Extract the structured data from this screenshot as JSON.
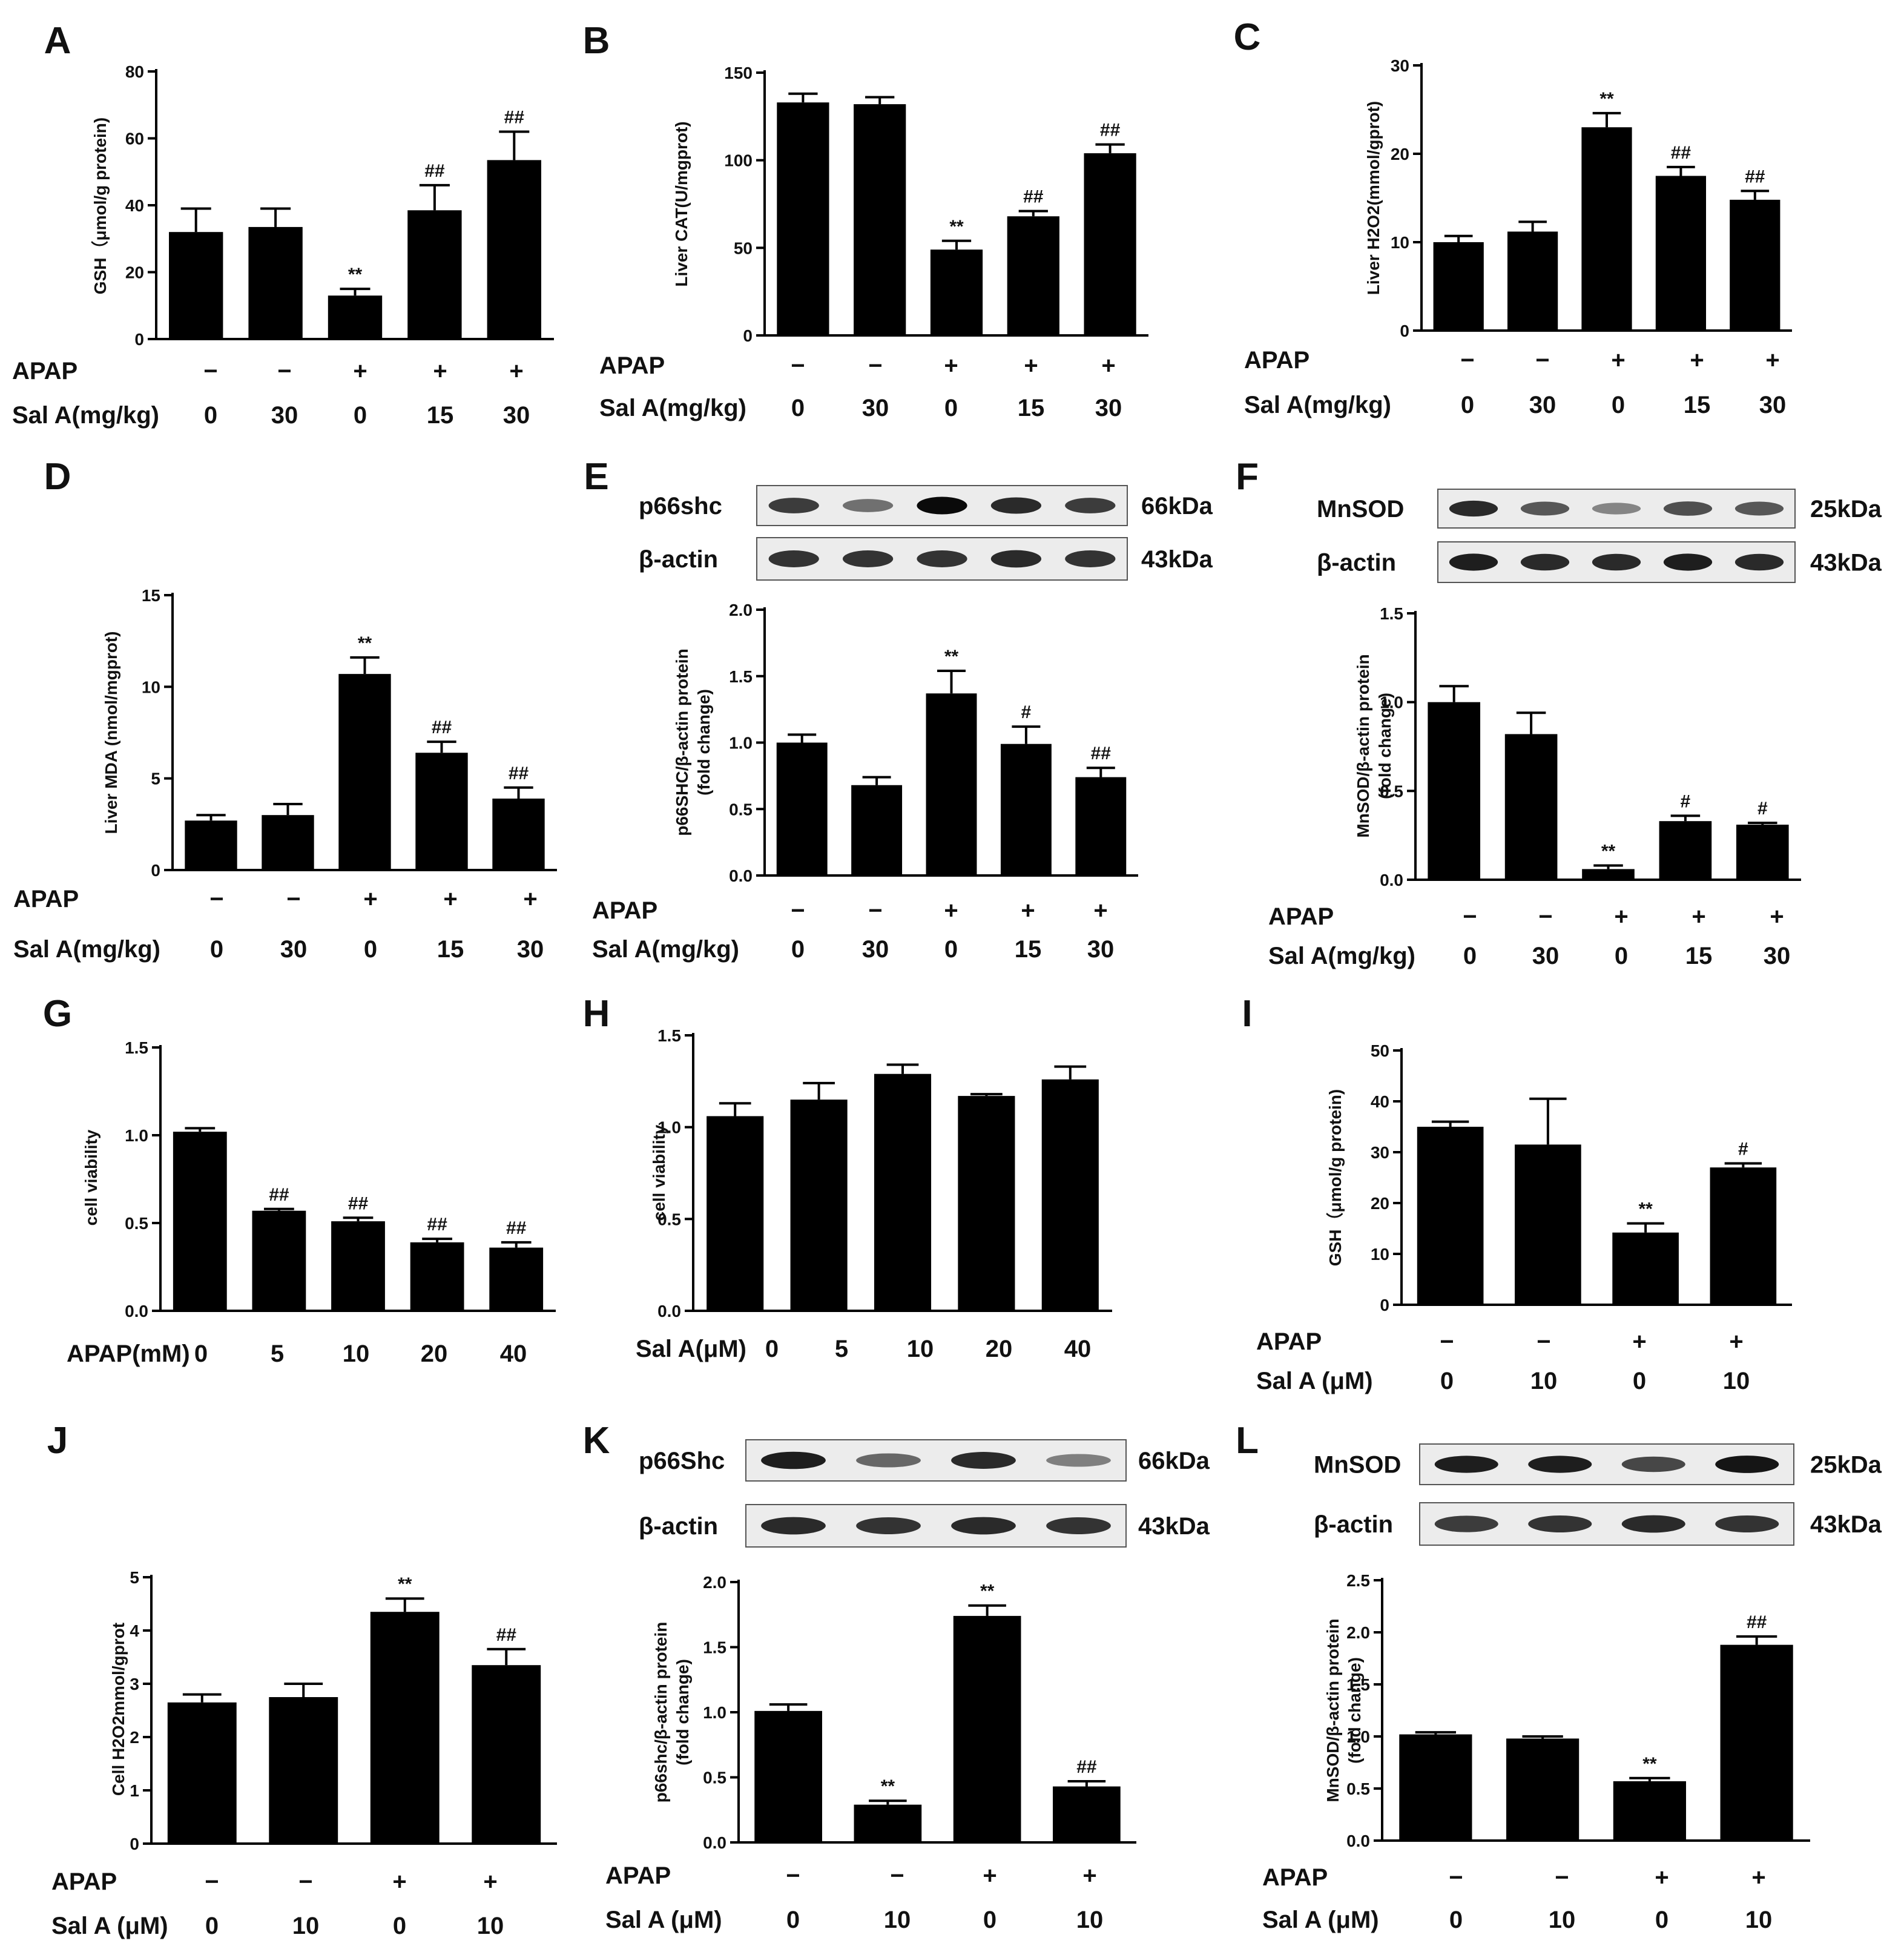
{
  "chart_data": [
    {
      "type": "bar",
      "panel": "A",
      "ylabel": "GSH（μmol/g protein)",
      "ylim": [
        0,
        80
      ],
      "yticks": [
        0,
        20,
        40,
        60,
        80
      ],
      "categories": [
        "1",
        "2",
        "3",
        "4",
        "5"
      ],
      "values": [
        32,
        33.5,
        13,
        38.5,
        53.5
      ],
      "errors": [
        7,
        5.5,
        2,
        7.5,
        8.5
      ],
      "annotations": [
        "",
        "",
        "**",
        "##",
        "##"
      ],
      "conditions": [
        {
          "label": "APAP",
          "values": [
            "−",
            "−",
            "+",
            "+",
            "+"
          ]
        },
        {
          "label": "Sal A(mg/kg)",
          "values": [
            "0",
            "30",
            "0",
            "15",
            "30"
          ]
        }
      ]
    },
    {
      "type": "bar",
      "panel": "B",
      "ylabel": "Liver CAT(U/mgprot)",
      "ylim": [
        0,
        150
      ],
      "yticks": [
        0,
        50,
        100,
        150
      ],
      "categories": [
        "1",
        "2",
        "3",
        "4",
        "5"
      ],
      "values": [
        133,
        132,
        49,
        68,
        104
      ],
      "errors": [
        5,
        4,
        5,
        3,
        5
      ],
      "annotations": [
        "",
        "",
        "**",
        "##",
        "##"
      ],
      "conditions": [
        {
          "label": "APAP",
          "values": [
            "−",
            "−",
            "+",
            "+",
            "+"
          ]
        },
        {
          "label": "Sal A(mg/kg)",
          "values": [
            "0",
            "30",
            "0",
            "15",
            "30"
          ]
        }
      ]
    },
    {
      "type": "bar",
      "panel": "C",
      "ylabel": "Liver H2O2(mmol/gprot)",
      "ylim": [
        0,
        30
      ],
      "yticks": [
        0,
        10,
        20,
        30
      ],
      "categories": [
        "1",
        "2",
        "3",
        "4",
        "5"
      ],
      "values": [
        10,
        11.2,
        23,
        17.5,
        14.8
      ],
      "errors": [
        0.7,
        1.1,
        1.6,
        1.0,
        1.0
      ],
      "annotations": [
        "",
        "",
        "**",
        "##",
        "##"
      ],
      "conditions": [
        {
          "label": "APAP",
          "values": [
            "−",
            "−",
            "+",
            "+",
            "+"
          ]
        },
        {
          "label": "Sal A(mg/kg)",
          "values": [
            "0",
            "30",
            "0",
            "15",
            "30"
          ]
        }
      ]
    },
    {
      "type": "bar",
      "panel": "D",
      "ylabel": "Liver MDA (nmol/mgprot)",
      "ylim": [
        0,
        15
      ],
      "yticks": [
        0,
        5,
        10,
        15
      ],
      "categories": [
        "1",
        "2",
        "3",
        "4",
        "5"
      ],
      "values": [
        2.7,
        3.0,
        10.7,
        6.4,
        3.9
      ],
      "errors": [
        0.3,
        0.6,
        0.9,
        0.6,
        0.6
      ],
      "annotations": [
        "",
        "",
        "**",
        "##",
        "##"
      ],
      "conditions": [
        {
          "label": "APAP",
          "values": [
            "−",
            "−",
            "+",
            "+",
            "+"
          ]
        },
        {
          "label": "Sal A(mg/kg)",
          "values": [
            "0",
            "30",
            "0",
            "15",
            "30"
          ]
        }
      ]
    },
    {
      "type": "bar",
      "panel": "E",
      "ylabel": "p66SHC/β-actin protein\n(fold change)",
      "ylim": [
        0,
        2.0
      ],
      "yticks": [
        0,
        0.5,
        1.0,
        1.5,
        2.0
      ],
      "categories": [
        "1",
        "2",
        "3",
        "4",
        "5"
      ],
      "values": [
        1.0,
        0.68,
        1.37,
        0.99,
        0.74
      ],
      "errors": [
        0.06,
        0.06,
        0.17,
        0.13,
        0.07
      ],
      "annotations": [
        "",
        "",
        "**",
        "#",
        "##"
      ],
      "conditions": [
        {
          "label": "APAP",
          "values": [
            "−",
            "−",
            "+",
            "+",
            "+"
          ]
        },
        {
          "label": "Sal A(mg/kg)",
          "values": [
            "0",
            "30",
            "0",
            "15",
            "30"
          ]
        }
      ],
      "blot": {
        "rows": [
          {
            "label": "p66shc",
            "kda": "66kDa",
            "intensity": [
              0.75,
              0.45,
              1.0,
              0.85,
              0.75
            ]
          },
          {
            "label": "β-actin",
            "kda": "43kDa",
            "intensity": [
              0.8,
              0.8,
              0.8,
              0.85,
              0.8
            ]
          }
        ]
      }
    },
    {
      "type": "bar",
      "panel": "F",
      "ylabel": "MnSOD/β-actin protein\n(fold change)",
      "ylim": [
        0,
        1.5
      ],
      "yticks": [
        0,
        0.5,
        1.0,
        1.5
      ],
      "categories": [
        "1",
        "2",
        "3",
        "4",
        "5"
      ],
      "values": [
        1.0,
        0.82,
        0.06,
        0.33,
        0.31
      ],
      "errors": [
        0.09,
        0.12,
        0.02,
        0.03,
        0.01
      ],
      "annotations": [
        "",
        "",
        "**",
        "#",
        "#"
      ],
      "conditions": [
        {
          "label": "APAP",
          "values": [
            "−",
            "−",
            "+",
            "+",
            "+"
          ]
        },
        {
          "label": "Sal A(mg/kg)",
          "values": [
            "0",
            "30",
            "0",
            "15",
            "30"
          ]
        }
      ],
      "blot": {
        "rows": [
          {
            "label": "MnSOD",
            "kda": "25kDa",
            "intensity": [
              0.85,
              0.6,
              0.3,
              0.65,
              0.6
            ]
          },
          {
            "label": "β-actin",
            "kda": "43kDa",
            "intensity": [
              0.9,
              0.85,
              0.85,
              0.9,
              0.85
            ]
          }
        ]
      }
    },
    {
      "type": "bar",
      "panel": "G",
      "ylabel": "cell viability",
      "ylim": [
        0,
        1.5
      ],
      "yticks": [
        0,
        0.5,
        1.0,
        1.5
      ],
      "categories": [
        "1",
        "2",
        "3",
        "4",
        "5"
      ],
      "values": [
        1.02,
        0.57,
        0.51,
        0.39,
        0.36
      ],
      "errors": [
        0.02,
        0.01,
        0.02,
        0.02,
        0.03
      ],
      "annotations": [
        "",
        "##",
        "##",
        "##",
        "##"
      ],
      "conditions": [
        {
          "label": "APAP(mM)",
          "values": [
            "0",
            "5",
            "10",
            "20",
            "40"
          ]
        }
      ]
    },
    {
      "type": "bar",
      "panel": "H",
      "ylabel": "cell viability",
      "ylim": [
        0,
        1.5
      ],
      "yticks": [
        0,
        0.5,
        1.0,
        1.5
      ],
      "categories": [
        "1",
        "2",
        "3",
        "4",
        "5"
      ],
      "values": [
        1.06,
        1.15,
        1.29,
        1.17,
        1.26
      ],
      "errors": [
        0.07,
        0.09,
        0.05,
        0.01,
        0.07
      ],
      "annotations": [
        "",
        "",
        "",
        "",
        ""
      ],
      "conditions": [
        {
          "label": "Sal A(μM)",
          "values": [
            "0",
            "5",
            "10",
            "20",
            "40"
          ]
        }
      ]
    },
    {
      "type": "bar",
      "panel": "I",
      "ylabel": "GSH（μmol/g protein)",
      "ylim": [
        0,
        50
      ],
      "yticks": [
        0,
        10,
        20,
        30,
        40,
        50
      ],
      "categories": [
        "1",
        "2",
        "3",
        "4"
      ],
      "values": [
        35,
        31.5,
        14.2,
        27
      ],
      "errors": [
        1,
        9,
        1.8,
        0.8
      ],
      "annotations": [
        "",
        "",
        "**",
        "#"
      ],
      "conditions": [
        {
          "label": "APAP",
          "values": [
            "−",
            "−",
            "+",
            "+"
          ]
        },
        {
          "label": "Sal A (μM)",
          "values": [
            "0",
            "10",
            "0",
            "10"
          ]
        }
      ]
    },
    {
      "type": "bar",
      "panel": "J",
      "ylabel": "Cell H2O2mmol/gprot",
      "ylim": [
        0,
        5
      ],
      "yticks": [
        0,
        1,
        2,
        3,
        4,
        5
      ],
      "categories": [
        "1",
        "2",
        "3",
        "4"
      ],
      "values": [
        2.65,
        2.75,
        4.35,
        3.35
      ],
      "errors": [
        0.15,
        0.25,
        0.25,
        0.3
      ],
      "annotations": [
        "",
        "",
        "**",
        "##"
      ],
      "conditions": [
        {
          "label": "APAP",
          "values": [
            "−",
            "−",
            "+",
            "+"
          ]
        },
        {
          "label": "Sal A (μM)",
          "values": [
            "0",
            "10",
            "0",
            "10"
          ]
        }
      ]
    },
    {
      "type": "bar",
      "panel": "K",
      "ylabel": "p66shc/β-actin protein\n(fold change)",
      "ylim": [
        0,
        2.0
      ],
      "yticks": [
        0,
        0.5,
        1.0,
        1.5,
        2.0
      ],
      "categories": [
        "1",
        "2",
        "3",
        "4"
      ],
      "values": [
        1.01,
        0.29,
        1.74,
        0.43
      ],
      "errors": [
        0.05,
        0.03,
        0.08,
        0.04
      ],
      "annotations": [
        "",
        "**",
        "**",
        "##"
      ],
      "conditions": [
        {
          "label": "APAP",
          "values": [
            "−",
            "−",
            "+",
            "+"
          ]
        },
        {
          "label": "Sal A (μM)",
          "values": [
            "0",
            "10",
            "0",
            "10"
          ]
        }
      ],
      "blot": {
        "rows": [
          {
            "label": "p66Shc",
            "kda": "66kDa",
            "intensity": [
              0.9,
              0.5,
              0.85,
              0.35
            ]
          },
          {
            "label": "β-actin",
            "kda": "43kDa",
            "intensity": [
              0.85,
              0.8,
              0.85,
              0.8
            ]
          }
        ]
      }
    },
    {
      "type": "bar",
      "panel": "L",
      "ylabel": "MnSOD/β-actin protein\n(fold change)",
      "ylim": [
        0,
        2.5
      ],
      "yticks": [
        0,
        0.5,
        1.0,
        1.5,
        2.0,
        2.5
      ],
      "categories": [
        "1",
        "2",
        "3",
        "4"
      ],
      "values": [
        1.02,
        0.98,
        0.57,
        1.88
      ],
      "errors": [
        0.02,
        0.02,
        0.03,
        0.08
      ],
      "annotations": [
        "",
        "",
        "**",
        "##"
      ],
      "conditions": [
        {
          "label": "APAP",
          "values": [
            "−",
            "−",
            "+",
            "+"
          ]
        },
        {
          "label": "Sal A (μM)",
          "values": [
            "0",
            "10",
            "0",
            "10"
          ]
        }
      ],
      "blot": {
        "rows": [
          {
            "label": "MnSOD",
            "kda": "25kDa",
            "intensity": [
              0.9,
              0.9,
              0.7,
              0.95
            ]
          },
          {
            "label": "β-actin",
            "kda": "43kDa",
            "intensity": [
              0.75,
              0.8,
              0.85,
              0.8
            ]
          }
        ]
      }
    }
  ]
}
